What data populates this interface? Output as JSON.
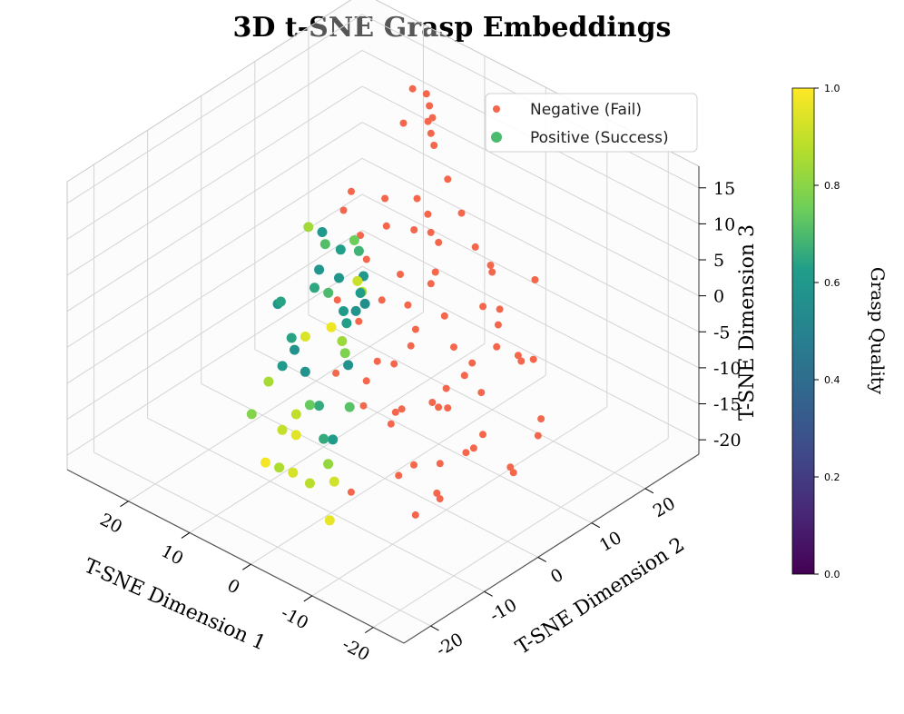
{
  "chart_data": {
    "type": "scatter",
    "projection": "3d",
    "title": "3D t-SNE Grasp Embeddings",
    "xlabel": "T-SNE Dimension 1",
    "ylabel": "T-SNE Dimension 2",
    "zlabel": "T-SNE Dimension 3",
    "xlim": [
      -25,
      30
    ],
    "ylim": [
      -25,
      30
    ],
    "zlim": [
      -22,
      18
    ],
    "xticks": [
      -20,
      -10,
      0,
      10,
      20
    ],
    "xticklabels": [
      "-20",
      "-10",
      "0",
      "10",
      "20"
    ],
    "yticks": [
      -20,
      -10,
      0,
      10,
      20
    ],
    "yticklabels": [
      "-20",
      "-10",
      "0",
      "10",
      "20"
    ],
    "zticks": [
      -20,
      -15,
      -10,
      -5,
      0,
      5,
      10,
      15
    ],
    "zticklabels": [
      "-20",
      "-15",
      "-10",
      "-5",
      "0",
      "5",
      "10",
      "15"
    ],
    "grid": true,
    "legend": {
      "placement": "upper-right",
      "entries": [
        {
          "label": "Negative (Fail)",
          "color": "#f4674c"
        },
        {
          "label": "Positive (Success)",
          "color": "#4dbb6e"
        }
      ]
    },
    "colorbar": {
      "label": "Grasp Quality",
      "range": [
        0.0,
        1.0
      ],
      "ticks": [
        0.0,
        0.2,
        0.4,
        0.6,
        0.8,
        1.0
      ],
      "ticklabels": [
        "0.0",
        "0.2",
        "0.4",
        "0.6",
        "0.8",
        "1.0"
      ],
      "colormap": "viridis",
      "stops": [
        "#440154",
        "#482777",
        "#3f4a8a",
        "#31678e",
        "#26838f",
        "#1f9d8a",
        "#6cce5a",
        "#b6de2b",
        "#fee825"
      ]
    },
    "series": [
      {
        "name": "Negative (Fail)",
        "color": "#f4674c",
        "quality": 0.0,
        "points": [
          [
            -22,
            -10,
            -4
          ],
          [
            -21,
            -6,
            2
          ],
          [
            -20,
            -2,
            6
          ],
          [
            -19,
            -12,
            -10
          ],
          [
            -18,
            -4,
            -8
          ],
          [
            -17,
            2,
            8
          ],
          [
            -16,
            -8,
            -14
          ],
          [
            -15,
            4,
            4
          ],
          [
            -14,
            -14,
            0
          ],
          [
            -13,
            0,
            -2
          ],
          [
            -12,
            6,
            10
          ],
          [
            -11,
            -10,
            -12
          ],
          [
            -10,
            -2,
            12
          ],
          [
            -9,
            8,
            2
          ],
          [
            -8,
            -6,
            -6
          ],
          [
            -7,
            2,
            -10
          ],
          [
            -6,
            10,
            8
          ],
          [
            -5,
            -12,
            -16
          ],
          [
            -4,
            4,
            12
          ],
          [
            -3,
            -4,
            6
          ],
          [
            -2,
            12,
            10
          ],
          [
            -1,
            0,
            -14
          ],
          [
            0,
            6,
            14
          ],
          [
            1,
            -8,
            -4
          ],
          [
            2,
            14,
            12
          ],
          [
            3,
            2,
            -8
          ],
          [
            4,
            10,
            6
          ],
          [
            5,
            -2,
            14
          ],
          [
            6,
            16,
            14
          ],
          [
            7,
            8,
            10
          ],
          [
            8,
            18,
            16
          ],
          [
            9,
            4,
            12
          ],
          [
            10,
            20,
            12
          ],
          [
            12,
            22,
            14
          ],
          [
            14,
            24,
            10
          ],
          [
            16,
            26,
            12
          ],
          [
            18,
            24,
            8
          ],
          [
            20,
            28,
            10
          ],
          [
            -23,
            -8,
            -2
          ],
          [
            -21,
            0,
            -12
          ],
          [
            -19,
            6,
            0
          ],
          [
            -17,
            -14,
            -6
          ],
          [
            -15,
            -6,
            10
          ],
          [
            -13,
            10,
            -4
          ],
          [
            -11,
            -16,
            4
          ],
          [
            -9,
            0,
            -16
          ],
          [
            -7,
            12,
            4
          ],
          [
            -5,
            -4,
            -2
          ],
          [
            -3,
            8,
            -12
          ],
          [
            -1,
            -10,
            8
          ],
          [
            1,
            4,
            4
          ],
          [
            3,
            12,
            -2
          ],
          [
            5,
            6,
            8
          ],
          [
            7,
            16,
            4
          ],
          [
            -22,
            4,
            -6
          ],
          [
            -20,
            -14,
            4
          ],
          [
            -18,
            8,
            -12
          ],
          [
            -16,
            -2,
            2
          ],
          [
            -14,
            12,
            6
          ],
          [
            -12,
            -8,
            -18
          ],
          [
            -10,
            14,
            -8
          ],
          [
            -8,
            -14,
            10
          ],
          [
            -6,
            6,
            -4
          ],
          [
            -4,
            -8,
            14
          ],
          [
            -2,
            2,
            2
          ],
          [
            0,
            -4,
            -10
          ],
          [
            2,
            8,
            -6
          ],
          [
            4,
            0,
            10
          ],
          [
            -24,
            -4,
            -8
          ],
          [
            -12,
            -2,
            -6
          ],
          [
            -6,
            -2,
            0
          ],
          [
            0,
            10,
            6
          ]
        ]
      },
      {
        "name": "Positive (Success)",
        "color": "#4dbb6e",
        "quality_range": [
          0.55,
          1.0
        ],
        "points": [
          [
            -4,
            -14,
            -14,
            0.92
          ],
          [
            -2,
            -12,
            -10,
            0.62
          ],
          [
            0,
            -14,
            -16,
            0.88
          ],
          [
            2,
            -10,
            -8,
            0.66
          ],
          [
            4,
            -12,
            -12,
            0.95
          ],
          [
            6,
            -8,
            -6,
            0.58
          ],
          [
            8,
            -10,
            -14,
            0.9
          ],
          [
            10,
            -6,
            -4,
            0.64
          ],
          [
            12,
            -8,
            -10,
            0.85
          ],
          [
            14,
            -4,
            -2,
            0.6
          ],
          [
            -3,
            -10,
            -6,
            0.72
          ],
          [
            -1,
            -8,
            -2,
            0.57
          ],
          [
            1,
            -6,
            2,
            0.63
          ],
          [
            3,
            -4,
            -4,
            0.78
          ],
          [
            5,
            -2,
            0,
            0.61
          ],
          [
            7,
            0,
            -6,
            0.83
          ],
          [
            9,
            -2,
            4,
            0.59
          ],
          [
            11,
            2,
            -2,
            0.7
          ],
          [
            13,
            0,
            -8,
            0.94
          ],
          [
            15,
            4,
            -4,
            0.65
          ],
          [
            -2,
            -6,
            6,
            0.56
          ],
          [
            0,
            -4,
            8,
            0.6
          ],
          [
            2,
            -2,
            4,
            0.87
          ],
          [
            4,
            0,
            2,
            0.62
          ],
          [
            6,
            2,
            6,
            0.68
          ],
          [
            8,
            4,
            0,
            0.91
          ],
          [
            10,
            6,
            -6,
            0.58
          ],
          [
            12,
            8,
            2,
            0.75
          ],
          [
            14,
            6,
            -10,
            0.97
          ],
          [
            16,
            10,
            -2,
            0.63
          ],
          [
            -5,
            -16,
            -18,
            0.96
          ],
          [
            -3,
            -14,
            -12,
            0.82
          ],
          [
            1,
            -16,
            -14,
            0.93
          ],
          [
            5,
            -14,
            -16,
            0.86
          ],
          [
            9,
            -12,
            -18,
            0.98
          ],
          [
            13,
            -10,
            -14,
            0.79
          ],
          [
            3,
            -8,
            -14,
            0.66
          ],
          [
            7,
            -6,
            -12,
            0.74
          ],
          [
            11,
            -4,
            -16,
            0.89
          ],
          [
            15,
            -2,
            -12,
            0.61
          ],
          [
            6,
            -10,
            -2,
            0.57
          ],
          [
            10,
            -8,
            2,
            0.64
          ],
          [
            4,
            -4,
            6,
            0.59
          ],
          [
            8,
            -2,
            8,
            0.71
          ],
          [
            12,
            2,
            6,
            0.6
          ],
          [
            16,
            4,
            4,
            0.84
          ]
        ]
      }
    ]
  }
}
